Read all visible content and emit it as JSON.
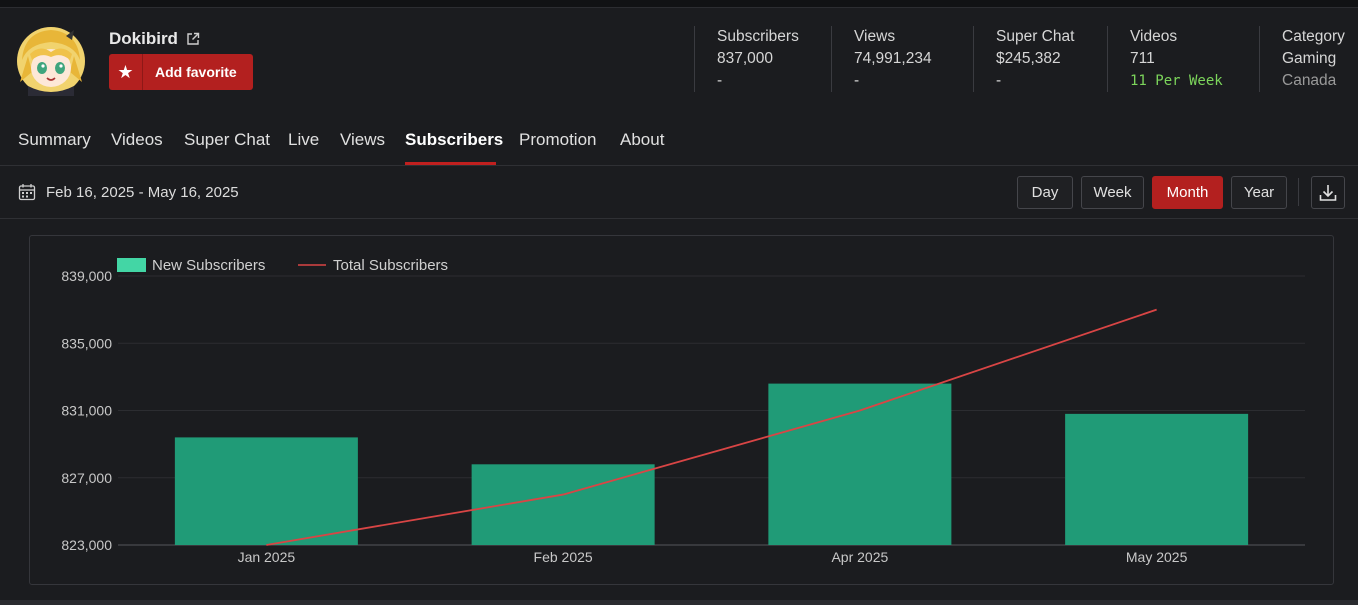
{
  "channel": {
    "name": "Dokibird",
    "favorite_label": "Add favorite"
  },
  "stats": {
    "subscribers": {
      "label": "Subscribers",
      "value": "837,000",
      "change": "-"
    },
    "views": {
      "label": "Views",
      "value": "74,991,234",
      "change": "-"
    },
    "super_chat": {
      "label": "Super Chat",
      "value": "$245,382",
      "change": "-"
    },
    "videos": {
      "label": "Videos",
      "value": "711",
      "rate": "11 Per Week"
    },
    "category": {
      "label": "Category",
      "value": "Gaming",
      "country": "Canada"
    }
  },
  "tabs": [
    "Summary",
    "Videos",
    "Super Chat",
    "Live",
    "Views",
    "Subscribers",
    "Promotion",
    "About"
  ],
  "active_tab": "Subscribers",
  "toolbar": {
    "date_range": "Feb 16, 2025 - May 16, 2025",
    "periods": [
      "Day",
      "Week",
      "Month",
      "Year"
    ],
    "active_period": "Month"
  },
  "colors": {
    "accent": "#b3201f",
    "bar": "#209b77",
    "legend_bar": "#43d6a5",
    "line": "#d94545",
    "green_text": "#7cd55b"
  },
  "icons": {
    "external": "external-link-icon",
    "favorite": "star-icon",
    "calendar": "calendar-icon",
    "download": "download-icon"
  },
  "chart_data": {
    "type": "bar",
    "categories": [
      "Jan 2025",
      "Feb 2025",
      "Apr 2025",
      "May 2025"
    ],
    "series": [
      {
        "name": "New Subscribers",
        "type": "bar",
        "values": [
          829400,
          827800,
          832600,
          830800
        ]
      },
      {
        "name": "Total Subscribers",
        "type": "line",
        "values": [
          823000,
          826000,
          831000,
          837000
        ]
      }
    ],
    "y_ticks": [
      "839,000",
      "835,000",
      "831,000",
      "827,000",
      "823,000"
    ],
    "ylim": [
      823000,
      839000
    ],
    "legend_position": "top-left",
    "grid": true
  }
}
